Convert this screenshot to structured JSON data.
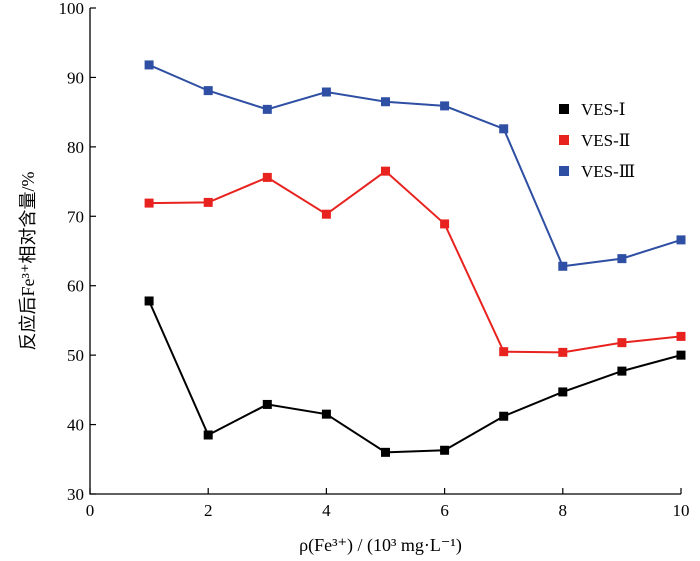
{
  "chart_data": {
    "type": "line",
    "title": "",
    "xlabel": "ρ(Fe³⁺) / (10³ mg·L⁻¹)",
    "ylabel": "反应后Fe³⁺相对含量/%",
    "xlim": [
      0,
      10
    ],
    "ylim": [
      30,
      100
    ],
    "x_ticks": [
      "0",
      "2",
      "4",
      "6",
      "8",
      "10"
    ],
    "y_ticks": [
      "30",
      "40",
      "50",
      "60",
      "70",
      "80",
      "90",
      "100"
    ],
    "grid": false,
    "legend_position": "right",
    "x": [
      1,
      2,
      3,
      4,
      5,
      6,
      7,
      8,
      9,
      10
    ],
    "series": [
      {
        "name": "VES-Ⅰ",
        "color": "#000000",
        "marker": "square",
        "values": [
          57.8,
          38.5,
          42.9,
          41.5,
          36.0,
          36.3,
          41.2,
          44.7,
          47.7,
          50.0
        ]
      },
      {
        "name": "VES-Ⅱ",
        "color": "#e8231f",
        "marker": "square",
        "values": [
          71.9,
          72.0,
          75.6,
          70.3,
          76.5,
          68.9,
          50.5,
          50.4,
          51.8,
          52.7
        ]
      },
      {
        "name": "VES-Ⅲ",
        "color": "#2e4fa3",
        "marker": "square",
        "values": [
          91.8,
          88.1,
          85.4,
          87.9,
          86.5,
          85.9,
          82.6,
          62.8,
          63.9,
          66.6
        ]
      }
    ]
  }
}
